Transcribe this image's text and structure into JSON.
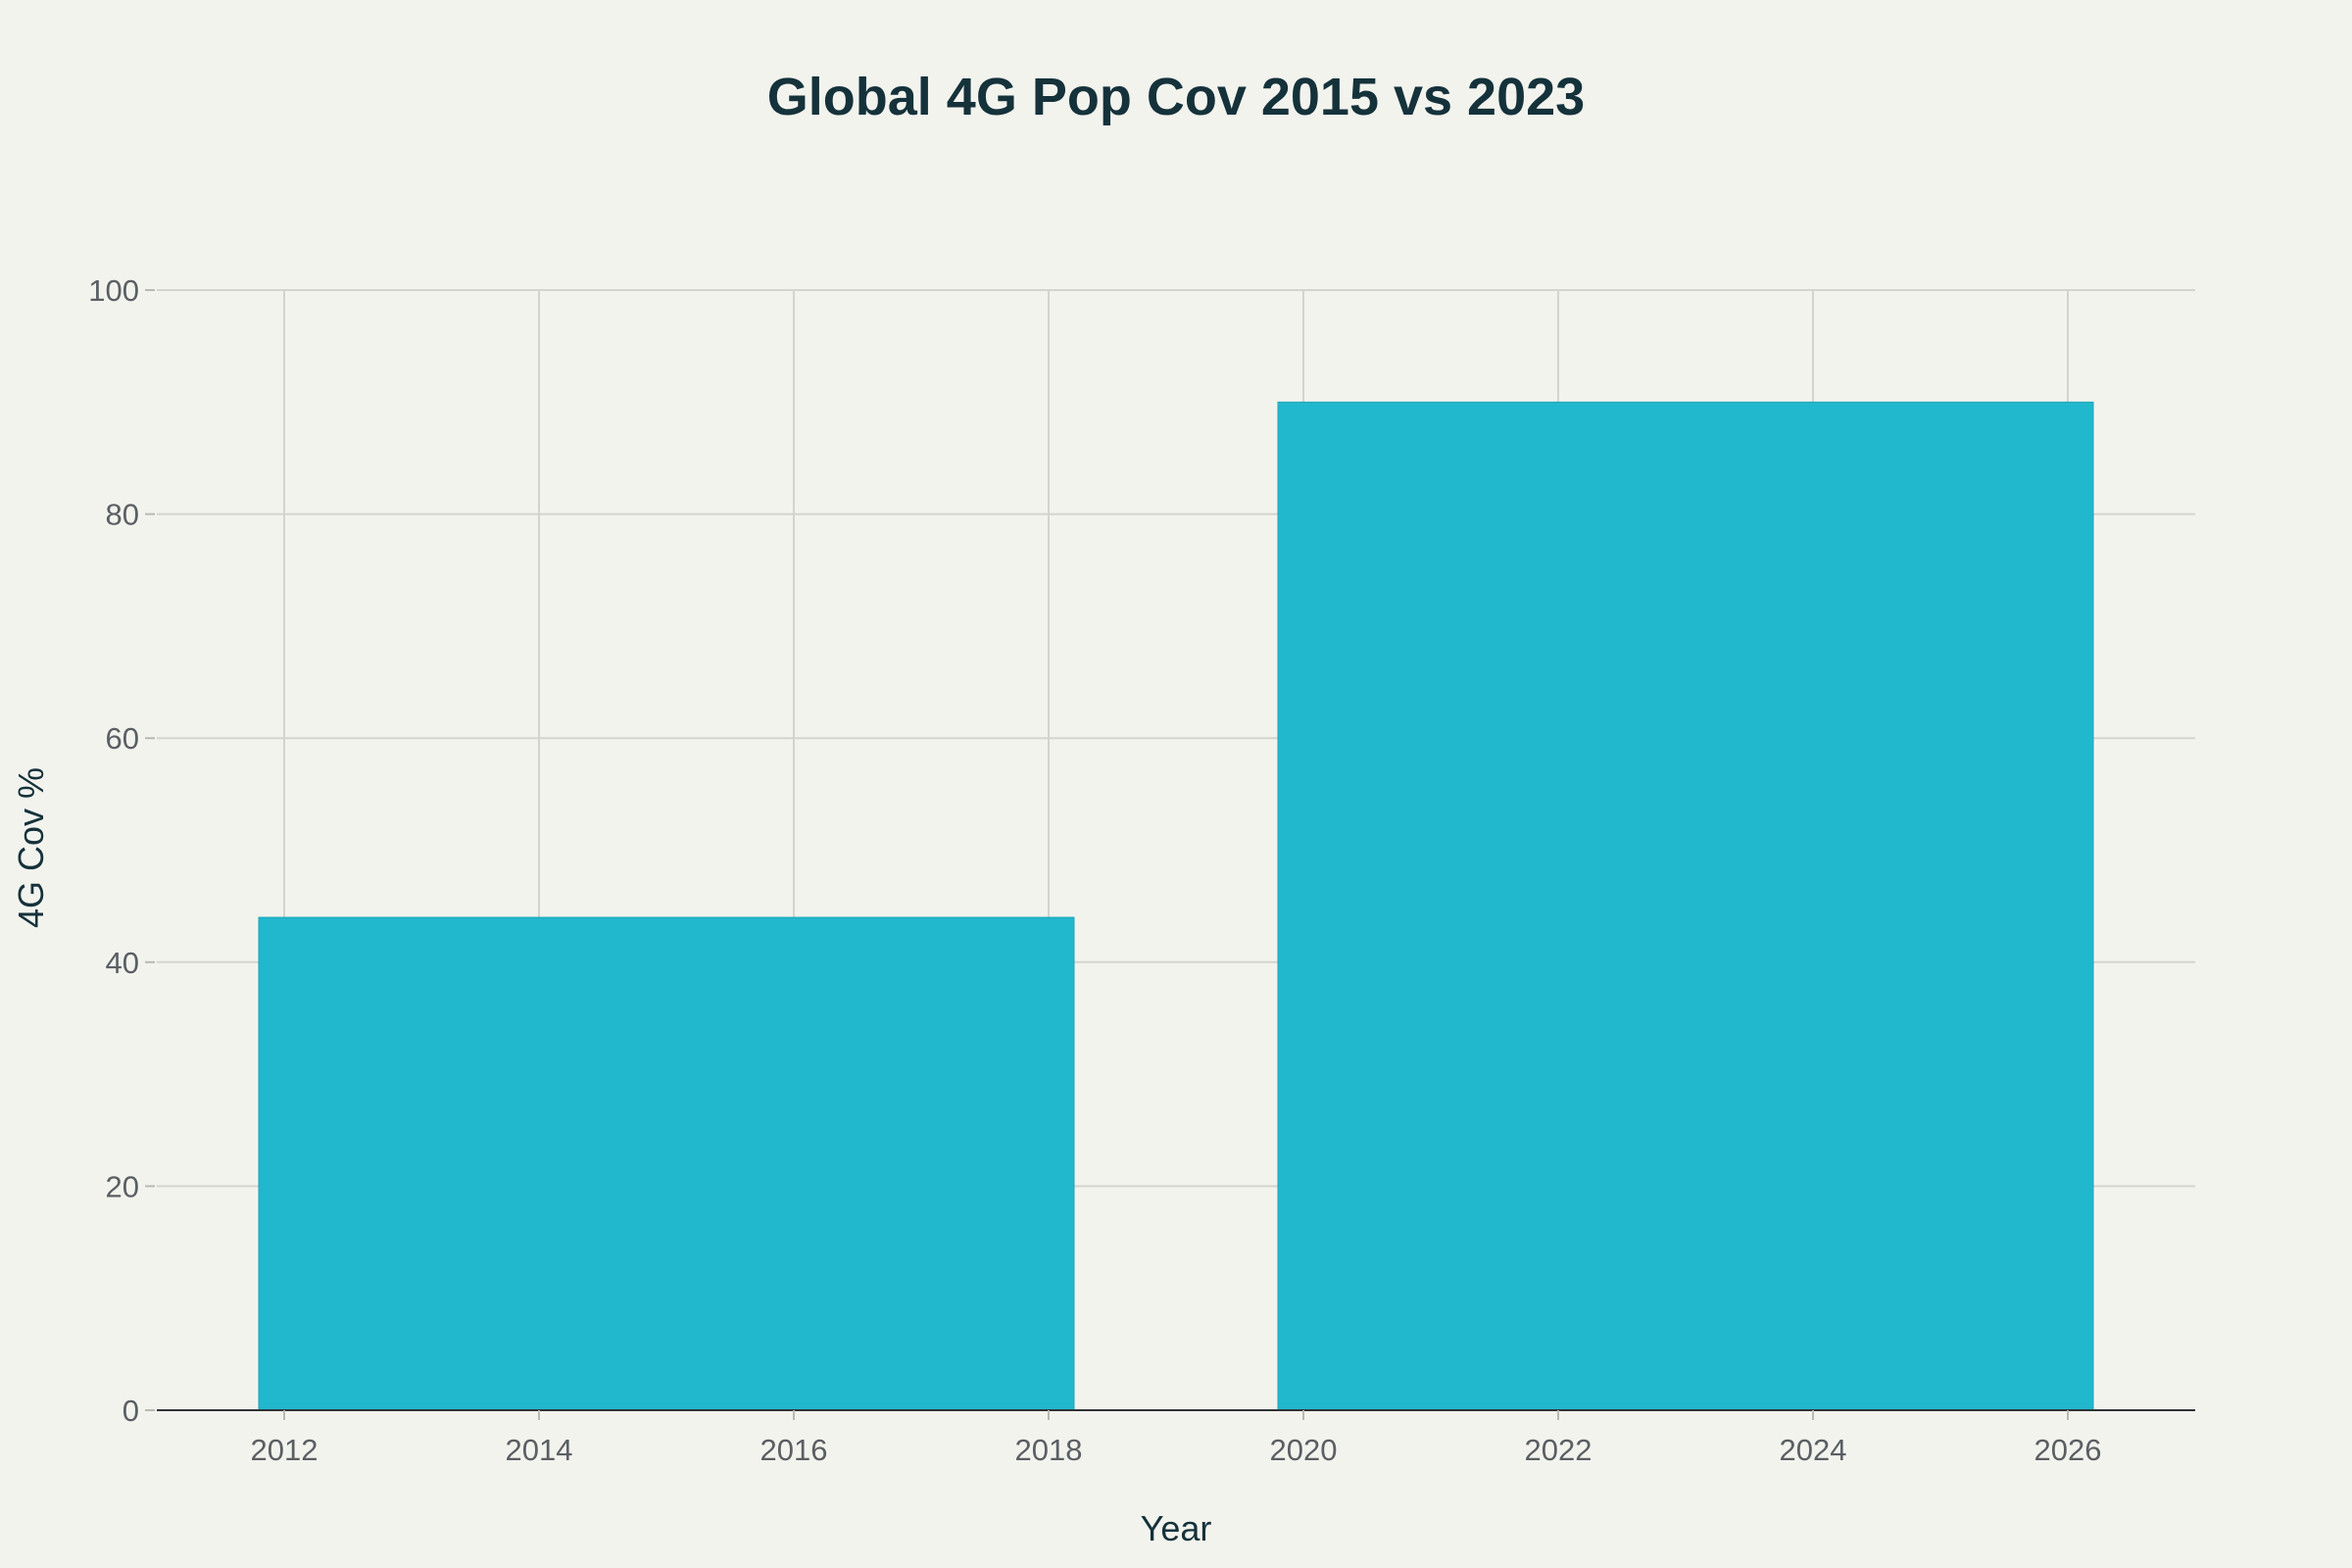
{
  "chart_data": {
    "type": "bar",
    "title": "Global 4G Pop Cov 2015 vs 2023",
    "xlabel": "Year",
    "ylabel": "4G Cov %",
    "bars": [
      {
        "x": 2015,
        "value": 44,
        "width_years": 6.4
      },
      {
        "x": 2023,
        "value": 90,
        "width_years": 6.4
      }
    ],
    "xlim": [
      2011,
      2027
    ],
    "ylim": [
      0,
      100
    ],
    "x_ticks": [
      2012,
      2014,
      2016,
      2018,
      2020,
      2022,
      2024,
      2026
    ],
    "y_ticks": [
      0,
      20,
      40,
      60,
      80,
      100
    ],
    "grid": true,
    "legend": "none",
    "bar_color": "#21b7cc"
  }
}
